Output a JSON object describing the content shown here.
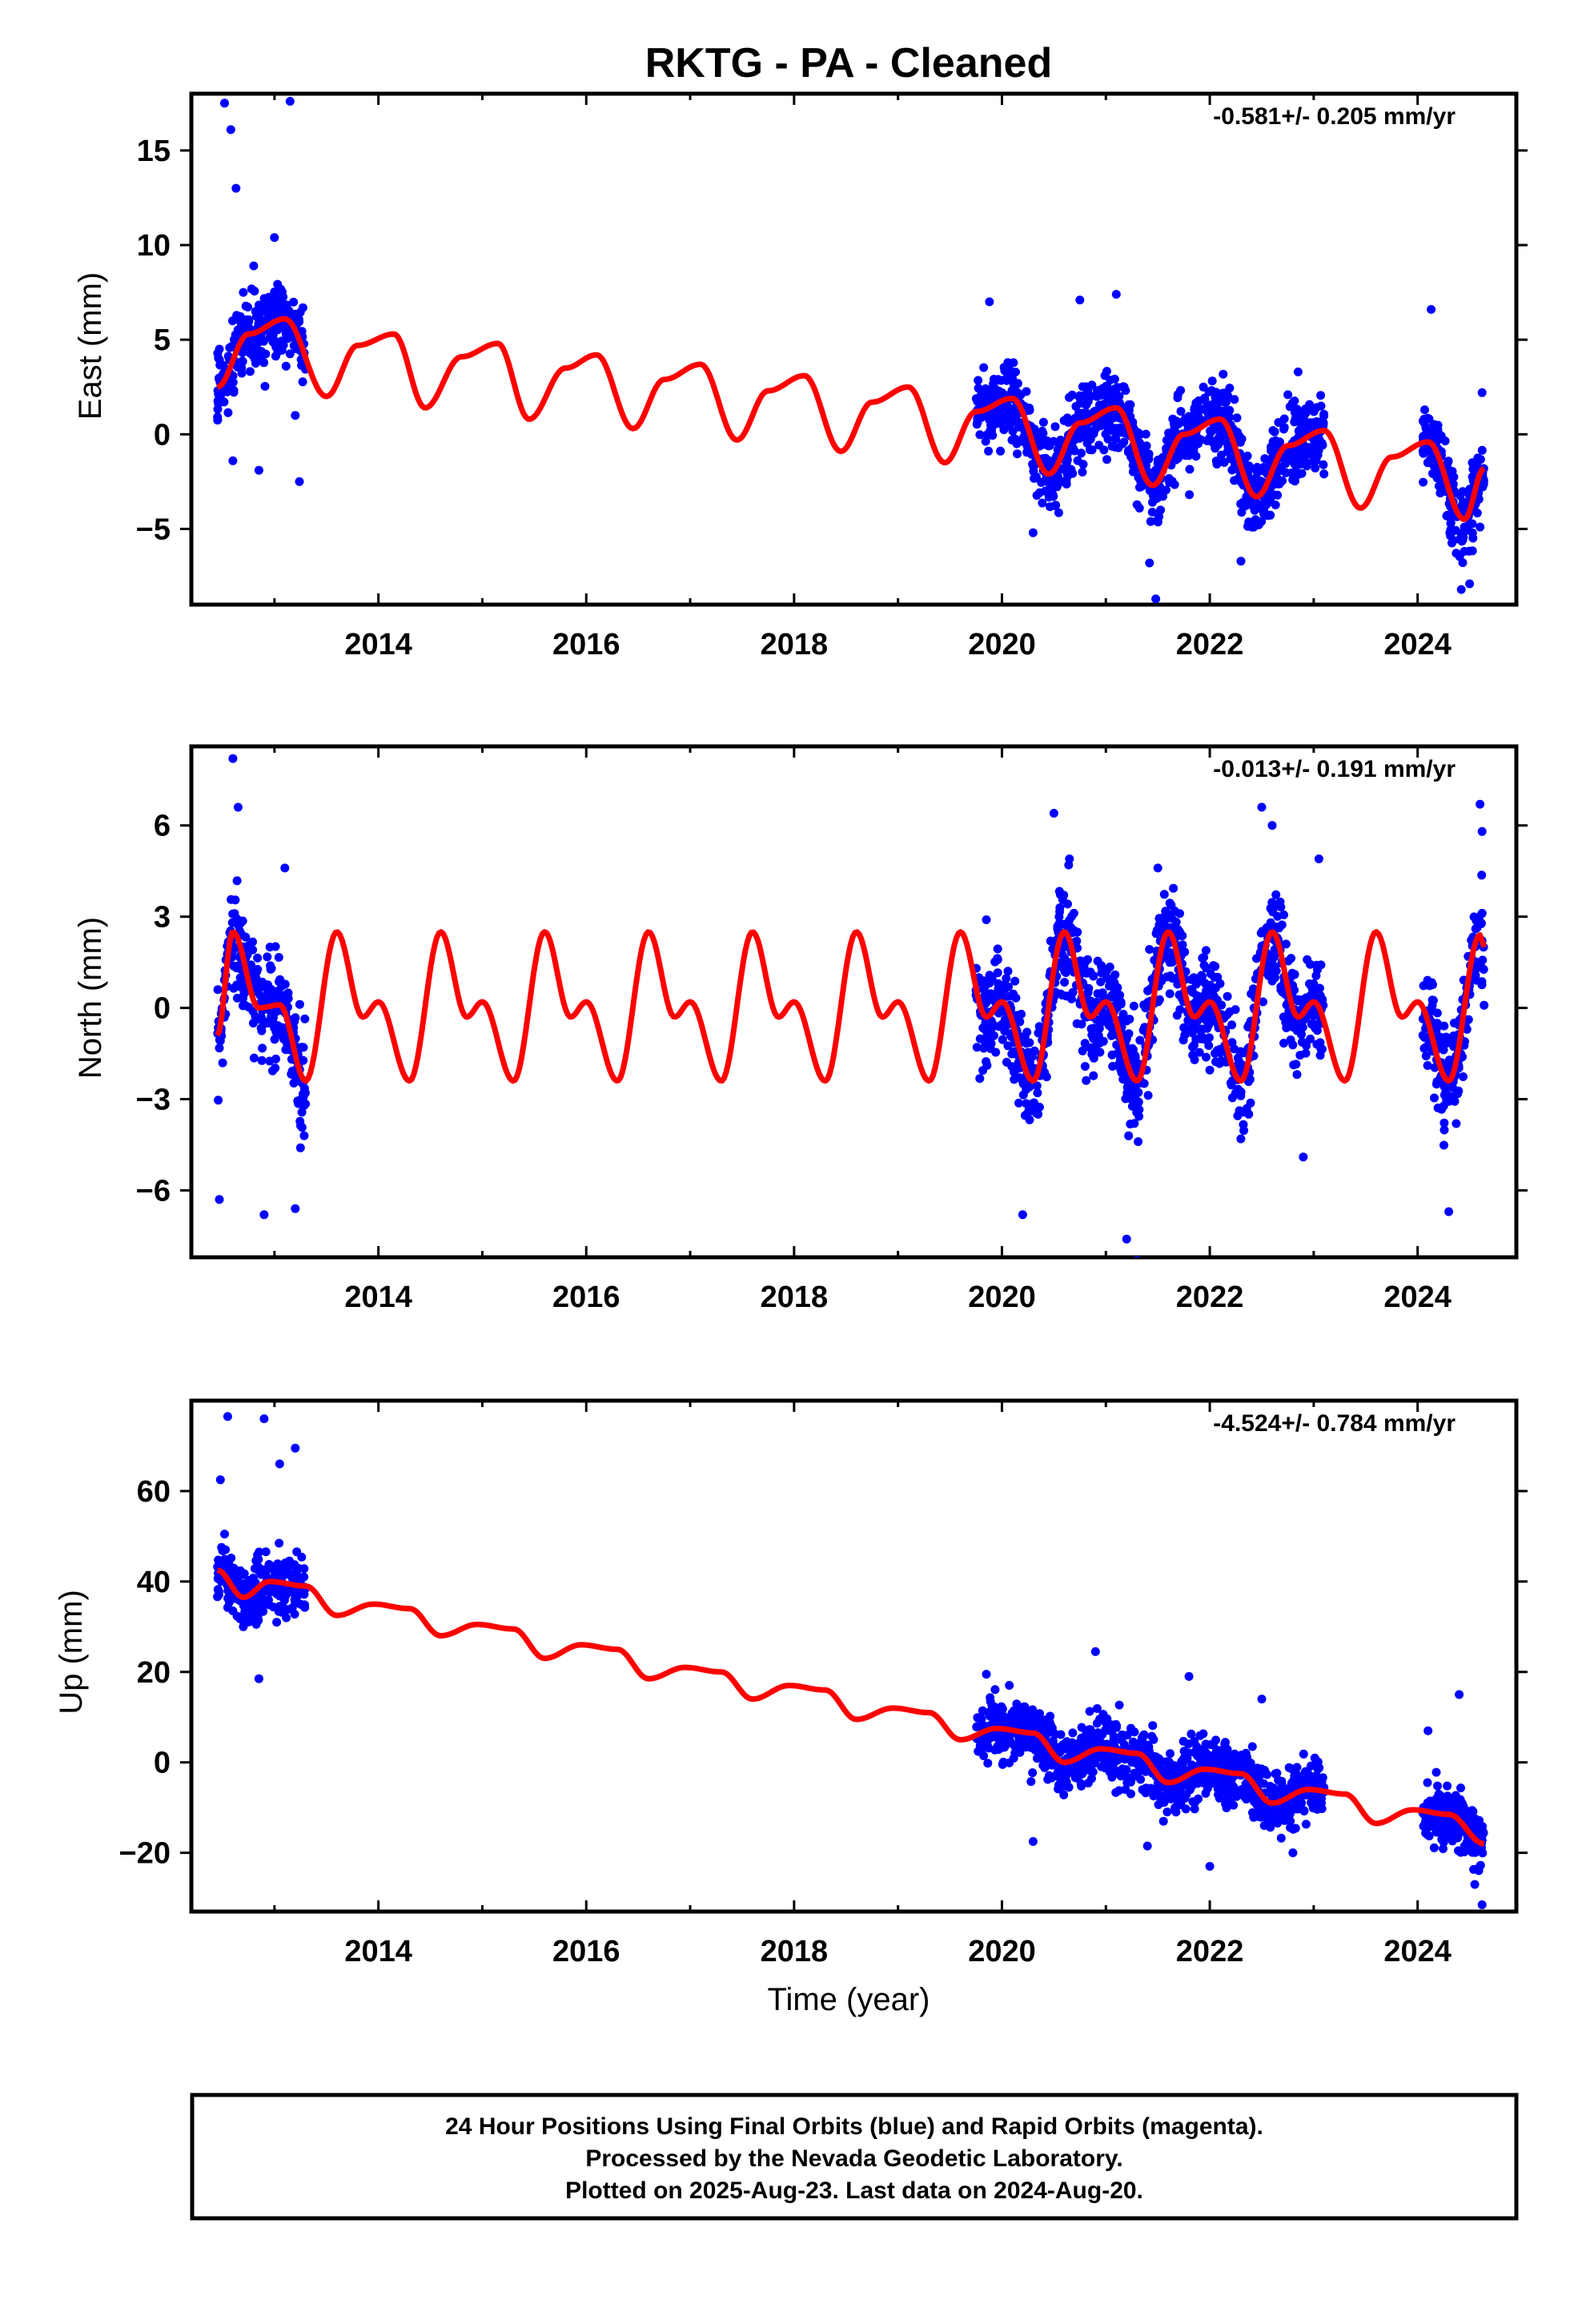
{
  "title": "RKTG  - PA - Cleaned",
  "x_axis_label": "Time (year)",
  "footer": {
    "line1": "24 Hour Positions Using Final Orbits (blue) and Rapid Orbits (magenta).",
    "line2": "Processed by the Nevada Geodetic Laboratory.",
    "line3": "Plotted on 2025-Aug-23. Last data on 2024-Aug-20."
  },
  "colors": {
    "data_points": "#0000ff",
    "model_curve": "#ff0000",
    "frame": "#000000"
  },
  "chart_data": [
    {
      "type": "scatter",
      "component": "east",
      "ylabel": "East (mm)",
      "rate_label": "-0.581+/- 0.205 mm/yr",
      "xlim": [
        2012.2,
        2024.95
      ],
      "ylim": [
        -9,
        18
      ],
      "x_ticks": [
        2014,
        2016,
        2018,
        2020,
        2022,
        2024
      ],
      "x_tick_labels": [
        "2014",
        "2016",
        "2018",
        "2020",
        "2022",
        "2024"
      ],
      "y_ticks": [
        -5,
        0,
        5,
        10,
        15
      ],
      "y_tick_labels": [
        "−5",
        "0",
        "5",
        "10",
        "15"
      ],
      "grid": false,
      "data_segments": [
        [
          2012.45,
          2013.3
        ],
        [
          2019.75,
          2023.1
        ],
        [
          2024.05,
          2024.64
        ]
      ],
      "series": [
        {
          "role": "daily positions",
          "points": [
            [
              2012.47,
              4.5
            ],
            [
              2012.52,
              17.5
            ],
            [
              2012.58,
              16.1
            ],
            [
              2012.63,
              13.0
            ],
            [
              2012.7,
              7.5
            ],
            [
              2012.8,
              8.9
            ],
            [
              2012.9,
              5.5
            ],
            [
              2013.0,
              10.4
            ],
            [
              2013.15,
              17.6
            ],
            [
              2013.2,
              1.0
            ],
            [
              2013.24,
              -2.5
            ],
            [
              2012.6,
              -1.4
            ],
            [
              2012.85,
              -1.9
            ],
            [
              2019.88,
              7.0
            ],
            [
              2020.3,
              -5.2
            ],
            [
              2020.75,
              7.1
            ],
            [
              2021.1,
              7.4
            ],
            [
              2021.42,
              -6.8
            ],
            [
              2021.48,
              -8.7
            ],
            [
              2022.3,
              -6.7
            ],
            [
              2022.85,
              3.3
            ],
            [
              2024.13,
              6.6
            ],
            [
              2024.42,
              -8.2
            ],
            [
              2024.5,
              -7.9
            ],
            [
              2024.6,
              -4.9
            ],
            [
              2024.62,
              2.2
            ]
          ]
        },
        {
          "role": "model fit",
          "points": [
            [
              2012.45,
              2.5
            ],
            [
              2012.75,
              5.3
            ],
            [
              2013.1,
              6.1
            ],
            [
              2013.5,
              2.0
            ],
            [
              2013.8,
              4.7
            ],
            [
              2014.15,
              5.3
            ],
            [
              2014.45,
              1.4
            ],
            [
              2014.8,
              4.1
            ],
            [
              2015.15,
              4.8
            ],
            [
              2015.45,
              0.8
            ],
            [
              2015.8,
              3.5
            ],
            [
              2016.1,
              4.2
            ],
            [
              2016.45,
              0.3
            ],
            [
              2016.75,
              2.9
            ],
            [
              2017.1,
              3.7
            ],
            [
              2017.45,
              -0.3
            ],
            [
              2017.75,
              2.3
            ],
            [
              2018.1,
              3.1
            ],
            [
              2018.45,
              -0.9
            ],
            [
              2018.75,
              1.7
            ],
            [
              2019.1,
              2.5
            ],
            [
              2019.45,
              -1.5
            ],
            [
              2019.75,
              1.2
            ],
            [
              2020.1,
              1.9
            ],
            [
              2020.45,
              -2.1
            ],
            [
              2020.75,
              0.6
            ],
            [
              2021.1,
              1.4
            ],
            [
              2021.45,
              -2.7
            ],
            [
              2021.75,
              0.0
            ],
            [
              2022.1,
              0.8
            ],
            [
              2022.45,
              -3.3
            ],
            [
              2022.75,
              -0.6
            ],
            [
              2023.1,
              0.2
            ],
            [
              2023.45,
              -3.9
            ],
            [
              2023.75,
              -1.2
            ],
            [
              2024.1,
              -0.4
            ],
            [
              2024.45,
              -4.5
            ],
            [
              2024.64,
              -1.8
            ]
          ]
        }
      ]
    },
    {
      "type": "scatter",
      "component": "north",
      "ylabel": "North (mm)",
      "rate_label": "-0.013+/- 0.191 mm/yr",
      "xlim": [
        2012.2,
        2024.95
      ],
      "ylim": [
        -8.2,
        8.6
      ],
      "x_ticks": [
        2014,
        2016,
        2018,
        2020,
        2022,
        2024
      ],
      "x_tick_labels": [
        "2014",
        "2016",
        "2018",
        "2020",
        "2022",
        "2024"
      ],
      "y_ticks": [
        -6,
        -3,
        0,
        3,
        6
      ],
      "y_tick_labels": [
        "−6",
        "−3",
        "0",
        "3",
        "6"
      ],
      "grid": false,
      "data_segments": [
        [
          2012.45,
          2013.3
        ],
        [
          2019.75,
          2023.1
        ],
        [
          2024.05,
          2024.64
        ]
      ],
      "series": [
        {
          "role": "daily positions",
          "points": [
            [
              2012.47,
              -6.3
            ],
            [
              2012.6,
              8.2
            ],
            [
              2012.65,
              6.6
            ],
            [
              2012.9,
              -6.8
            ],
            [
              2013.2,
              -6.6
            ],
            [
              2013.25,
              -4.6
            ],
            [
              2013.1,
              4.6
            ],
            [
              2019.85,
              2.9
            ],
            [
              2020.2,
              -6.8
            ],
            [
              2020.5,
              6.4
            ],
            [
              2020.65,
              4.9
            ],
            [
              2021.2,
              -7.6
            ],
            [
              2021.3,
              -8.3
            ],
            [
              2021.5,
              4.6
            ],
            [
              2022.5,
              6.6
            ],
            [
              2022.6,
              6.0
            ],
            [
              2022.9,
              -4.9
            ],
            [
              2023.05,
              4.9
            ],
            [
              2024.3,
              -6.7
            ],
            [
              2024.6,
              6.7
            ],
            [
              2024.62,
              5.8
            ]
          ]
        },
        {
          "role": "model fit",
          "points": [
            [
              2012.45,
              -0.9
            ],
            [
              2012.6,
              2.5
            ],
            [
              2012.85,
              0.0
            ],
            [
              2013.05,
              0.1
            ],
            [
              2013.3,
              -2.4
            ],
            [
              2013.6,
              2.5
            ],
            [
              2013.85,
              -0.3
            ],
            [
              2014.0,
              0.2
            ],
            [
              2014.3,
              -2.4
            ],
            [
              2014.6,
              2.5
            ],
            [
              2014.85,
              -0.3
            ],
            [
              2015.0,
              0.2
            ],
            [
              2015.3,
              -2.4
            ],
            [
              2015.6,
              2.5
            ],
            [
              2015.85,
              -0.3
            ],
            [
              2016.0,
              0.2
            ],
            [
              2016.3,
              -2.4
            ],
            [
              2016.6,
              2.5
            ],
            [
              2016.85,
              -0.3
            ],
            [
              2017.0,
              0.2
            ],
            [
              2017.3,
              -2.4
            ],
            [
              2017.6,
              2.5
            ],
            [
              2017.85,
              -0.3
            ],
            [
              2018.0,
              0.2
            ],
            [
              2018.3,
              -2.4
            ],
            [
              2018.6,
              2.5
            ],
            [
              2018.85,
              -0.3
            ],
            [
              2019.0,
              0.2
            ],
            [
              2019.3,
              -2.4
            ],
            [
              2019.6,
              2.5
            ],
            [
              2019.85,
              -0.3
            ],
            [
              2020.0,
              0.2
            ],
            [
              2020.3,
              -2.4
            ],
            [
              2020.6,
              2.5
            ],
            [
              2020.85,
              -0.3
            ],
            [
              2021.0,
              0.2
            ],
            [
              2021.3,
              -2.4
            ],
            [
              2021.6,
              2.5
            ],
            [
              2021.85,
              -0.3
            ],
            [
              2022.0,
              0.2
            ],
            [
              2022.3,
              -2.4
            ],
            [
              2022.6,
              2.5
            ],
            [
              2022.85,
              -0.3
            ],
            [
              2023.0,
              0.2
            ],
            [
              2023.3,
              -2.4
            ],
            [
              2023.6,
              2.5
            ],
            [
              2023.85,
              -0.3
            ],
            [
              2024.0,
              0.2
            ],
            [
              2024.3,
              -2.4
            ],
            [
              2024.6,
              2.4
            ],
            [
              2024.64,
              2.0
            ]
          ]
        }
      ]
    },
    {
      "type": "scatter",
      "component": "up",
      "ylabel": "Up (mm)",
      "rate_label": "-4.524+/- 0.784 mm/yr",
      "xlim": [
        2012.2,
        2024.95
      ],
      "ylim": [
        -33,
        80
      ],
      "x_ticks": [
        2014,
        2016,
        2018,
        2020,
        2022,
        2024
      ],
      "x_tick_labels": [
        "2014",
        "2016",
        "2018",
        "2020",
        "2022",
        "2024"
      ],
      "y_ticks": [
        -20,
        0,
        20,
        40,
        60
      ],
      "y_tick_labels": [
        "−20",
        "0",
        "20",
        "40",
        "60"
      ],
      "grid": false,
      "data_segments": [
        [
          2012.45,
          2013.3
        ],
        [
          2019.75,
          2023.1
        ],
        [
          2024.05,
          2024.64
        ]
      ],
      "series": [
        {
          "role": "daily positions",
          "points": [
            [
              2012.48,
              62.5
            ],
            [
              2012.55,
              76.5
            ],
            [
              2012.7,
              30.0
            ],
            [
              2012.85,
              18.5
            ],
            [
              2012.9,
              76.0
            ],
            [
              2013.05,
              66.0
            ],
            [
              2013.2,
              69.5
            ],
            [
              2013.25,
              35.0
            ],
            [
              2019.85,
              19.5
            ],
            [
              2020.3,
              -17.5
            ],
            [
              2020.9,
              24.5
            ],
            [
              2021.4,
              -18.5
            ],
            [
              2021.8,
              19.0
            ],
            [
              2022.0,
              -23.0
            ],
            [
              2022.5,
              14.0
            ],
            [
              2022.8,
              -20.0
            ],
            [
              2024.1,
              7.0
            ],
            [
              2024.4,
              15.0
            ],
            [
              2024.55,
              -27.0
            ],
            [
              2024.62,
              -31.5
            ]
          ]
        },
        {
          "role": "model fit",
          "points": [
            [
              2012.45,
              42.5
            ],
            [
              2012.7,
              36.5
            ],
            [
              2012.95,
              40.0
            ],
            [
              2013.3,
              39.0
            ],
            [
              2013.6,
              32.5
            ],
            [
              2013.95,
              35.0
            ],
            [
              2014.3,
              34.0
            ],
            [
              2014.6,
              28.0
            ],
            [
              2014.95,
              30.5
            ],
            [
              2015.3,
              29.5
            ],
            [
              2015.6,
              23.0
            ],
            [
              2015.95,
              26.0
            ],
            [
              2016.3,
              25.0
            ],
            [
              2016.6,
              18.5
            ],
            [
              2016.95,
              21.0
            ],
            [
              2017.3,
              20.0
            ],
            [
              2017.6,
              14.0
            ],
            [
              2017.95,
              17.0
            ],
            [
              2018.3,
              16.0
            ],
            [
              2018.6,
              9.5
            ],
            [
              2018.95,
              12.0
            ],
            [
              2019.3,
              11.0
            ],
            [
              2019.6,
              5.0
            ],
            [
              2019.95,
              7.5
            ],
            [
              2020.3,
              6.5
            ],
            [
              2020.6,
              0.0
            ],
            [
              2020.95,
              3.0
            ],
            [
              2021.3,
              2.0
            ],
            [
              2021.6,
              -4.5
            ],
            [
              2021.95,
              -1.5
            ],
            [
              2022.3,
              -2.5
            ],
            [
              2022.6,
              -9.0
            ],
            [
              2022.95,
              -6.0
            ],
            [
              2023.3,
              -7.0
            ],
            [
              2023.6,
              -13.5
            ],
            [
              2023.95,
              -10.5
            ],
            [
              2024.3,
              -11.5
            ],
            [
              2024.64,
              -18.0
            ]
          ]
        }
      ]
    }
  ]
}
